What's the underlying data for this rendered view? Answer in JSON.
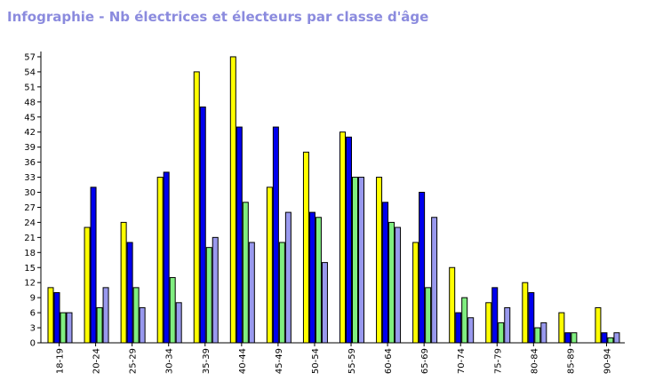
{
  "chart_data": {
    "type": "bar",
    "title": "Infographie - Nb électrices et électeurs par classe d'âge",
    "xlabel": "",
    "ylabel": "",
    "ylim": [
      0,
      58
    ],
    "yticks": [
      0,
      3,
      6,
      9,
      12,
      15,
      18,
      21,
      24,
      27,
      30,
      33,
      36,
      39,
      42,
      45,
      48,
      51,
      54,
      57
    ],
    "grid": false,
    "legend": "none",
    "categories": [
      "18-19",
      "20-24",
      "25-29",
      "30-34",
      "35-39",
      "40-44",
      "45-49",
      "50-54",
      "55-59",
      "60-64",
      "65-69",
      "70-74",
      "75-79",
      "80-84",
      "85-89",
      "90-94"
    ],
    "series": [
      {
        "color": "#ffff00",
        "values": [
          11,
          23,
          24,
          33,
          54,
          57,
          31,
          38,
          42,
          33,
          20,
          15,
          8,
          12,
          6,
          7
        ]
      },
      {
        "color": "#0000ee",
        "values": [
          10,
          31,
          20,
          34,
          47,
          43,
          43,
          26,
          41,
          28,
          30,
          6,
          11,
          10,
          2,
          2
        ]
      },
      {
        "color": "#80ee80",
        "values": [
          6,
          7,
          11,
          13,
          19,
          28,
          20,
          25,
          33,
          24,
          11,
          9,
          4,
          3,
          2,
          1
        ]
      },
      {
        "color": "#9999ee",
        "values": [
          6,
          11,
          7,
          8,
          21,
          20,
          26,
          16,
          33,
          23,
          25,
          5,
          7,
          4,
          0,
          2
        ]
      }
    ]
  }
}
